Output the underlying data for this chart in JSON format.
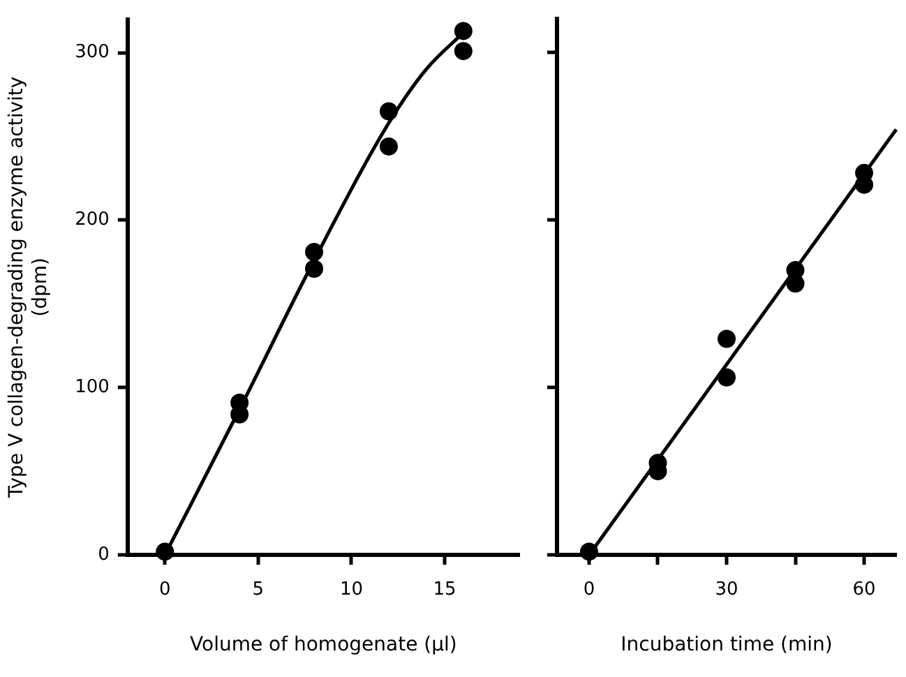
{
  "chart_data": [
    {
      "type": "scatter",
      "xlabel": "Volume of homogenate (µl)",
      "ylabel": "Type V collagen-degrading enzyme activity\n(dpm)",
      "xlim": [
        -2,
        19
      ],
      "xticks": [
        0,
        5,
        10,
        15
      ],
      "ylim": [
        0,
        320
      ],
      "yticks": [
        0,
        100,
        200,
        300
      ],
      "grid": false,
      "legend": false,
      "series": [
        {
          "color": "#000000",
          "marker": "circle",
          "x": [
            0,
            4,
            4,
            8,
            8,
            12,
            12,
            16,
            16
          ],
          "values": [
            2,
            91,
            84,
            181,
            171,
            265,
            244,
            313,
            301
          ]
        },
        {
          "type": "line",
          "marker": "none",
          "color": "#000000",
          "x": [
            0,
            4,
            8,
            12,
            14,
            16
          ],
          "values": [
            0,
            87,
            176,
            258,
            290,
            312
          ]
        }
      ]
    },
    {
      "type": "scatter",
      "xlabel": "Incubation time (min)",
      "xlim": [
        -7,
        67
      ],
      "xticks": [
        0,
        {
          "value": 15,
          "label": null
        },
        30,
        {
          "value": 45,
          "label": null
        },
        60
      ],
      "ylim": [
        0,
        320
      ],
      "yticks": [
        0,
        100,
        200,
        300
      ],
      "tick_labels": "x",
      "grid": false,
      "legend": false,
      "series": [
        {
          "color": "#000000",
          "marker": "circle",
          "x": [
            0,
            15,
            15,
            30,
            30,
            45,
            45,
            60,
            60
          ],
          "values": [
            2,
            55,
            50,
            129,
            106,
            170,
            162,
            228,
            221
          ]
        },
        {
          "type": "line",
          "marker": "none",
          "color": "#000000",
          "x": [
            0,
            67
          ],
          "values": [
            0,
            254
          ]
        }
      ]
    }
  ]
}
